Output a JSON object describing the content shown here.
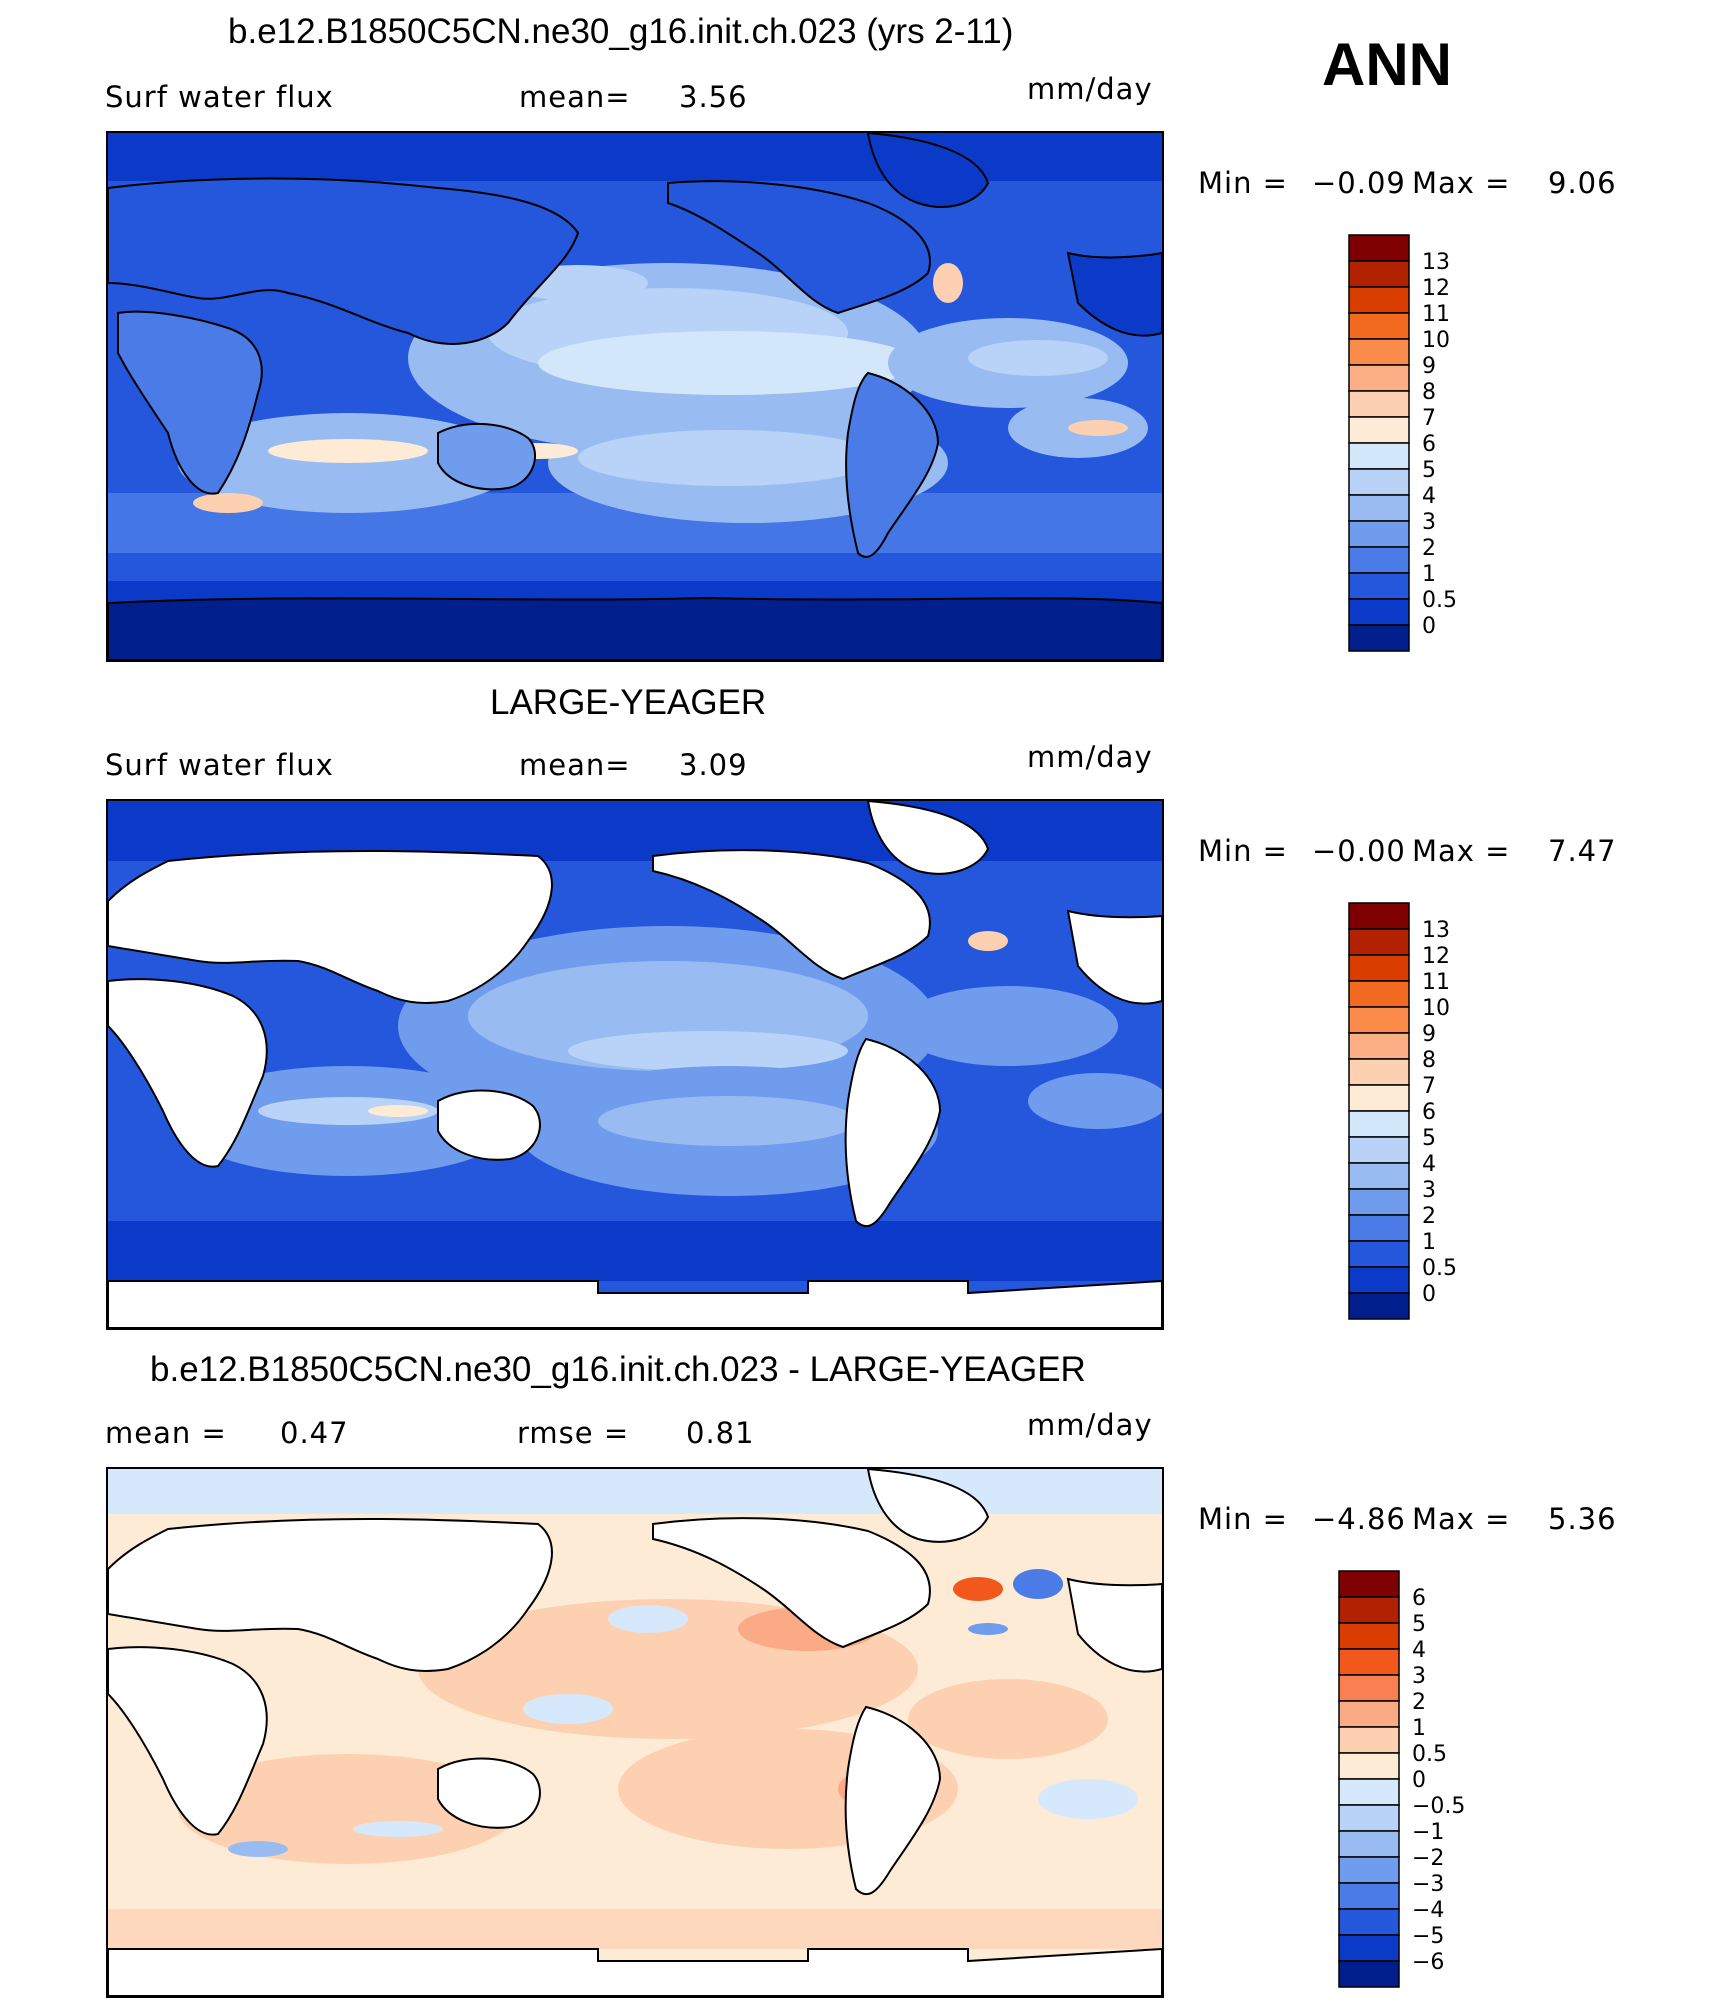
{
  "season": "ANN",
  "panels": [
    {
      "title": "b.e12.B1850C5CN.ne30_g16.init.ch.023 (yrs 2-11)",
      "left_label": "Surf water flux",
      "mid_label": "mean=",
      "mid_value": "3.56",
      "units": "mm/day",
      "min_label": "Min =",
      "min_value": "−0.09",
      "max_label": "Max =",
      "max_value": "9.06",
      "legend": {
        "labels": [
          "13",
          "12",
          "11",
          "10",
          "9",
          "8",
          "7",
          "6",
          "5",
          "4",
          "3",
          "2",
          "1",
          "0.5",
          "0"
        ],
        "colors": [
          "#7e0000",
          "#b32200",
          "#d93d00",
          "#f26a1f",
          "#fb8b4a",
          "#fcae84",
          "#fdd0b2",
          "#fdebd6",
          "#d3e7fa",
          "#b8d3f7",
          "#98bcf2",
          "#709ced",
          "#4a7be6",
          "#2557dc",
          "#0c3ac8",
          "#001e8c"
        ]
      },
      "field_colors": {
        "deep": "#001e8c",
        "dark": "#0c3ac8",
        "mid": "#2557dc",
        "blue": "#4a7be6",
        "light": "#709ced",
        "pale": "#98bcf2",
        "paler": "#b8d3f7",
        "ice": "#d3e7fa",
        "cream": "#fdebd6",
        "peach": "#fdd0b2"
      }
    },
    {
      "title": "LARGE-YEAGER",
      "left_label": "Surf water flux",
      "mid_label": "mean=",
      "mid_value": "3.09",
      "units": "mm/day",
      "min_label": "Min =",
      "min_value": "−0.00",
      "max_label": "Max =",
      "max_value": "7.47",
      "legend": {
        "labels": [
          "13",
          "12",
          "11",
          "10",
          "9",
          "8",
          "7",
          "6",
          "5",
          "4",
          "3",
          "2",
          "1",
          "0.5",
          "0"
        ],
        "colors": [
          "#7e0000",
          "#b32200",
          "#d93d00",
          "#f26a1f",
          "#fb8b4a",
          "#fcae84",
          "#fdd0b2",
          "#fdebd6",
          "#d3e7fa",
          "#b8d3f7",
          "#98bcf2",
          "#709ced",
          "#4a7be6",
          "#2557dc",
          "#0c3ac8",
          "#001e8c"
        ]
      }
    },
    {
      "title": "b.e12.B1850C5CN.ne30_g16.init.ch.023 - LARGE-YEAGER",
      "left_label": "mean =",
      "left_value": "0.47",
      "mid_label": "rmse =",
      "mid_value": "0.81",
      "units": "mm/day",
      "min_label": "Min =",
      "min_value": "−4.86",
      "max_label": "Max =",
      "max_value": "5.36",
      "legend": {
        "labels": [
          "6",
          "5",
          "4",
          "3",
          "2",
          "1",
          "0.5",
          "0",
          "−0.5",
          "−1",
          "−2",
          "−3",
          "−4",
          "−5",
          "−6"
        ],
        "colors": [
          "#7e0000",
          "#b32200",
          "#d93d00",
          "#f2581c",
          "#f98050",
          "#fbaa86",
          "#fdd0b2",
          "#fdebd6",
          "#d6e8fb",
          "#b8d3f7",
          "#98bcf2",
          "#709ced",
          "#4a7be6",
          "#2557dc",
          "#0c3ac8",
          "#001e8c"
        ]
      }
    }
  ]
}
